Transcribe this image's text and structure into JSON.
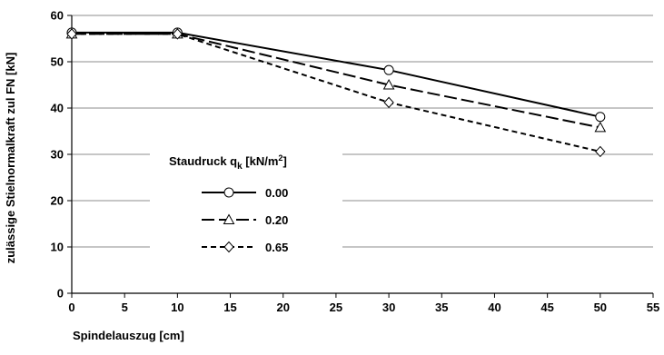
{
  "chart_data": {
    "type": "line",
    "title": "",
    "xlabel": "Spindelauszug [cm]",
    "ylabel": "zulässige Stielnormalkraft zul FN [kN]",
    "xlim": [
      0,
      55
    ],
    "ylim": [
      0,
      60
    ],
    "xticks": [
      0,
      5,
      10,
      15,
      20,
      25,
      30,
      35,
      40,
      45,
      50,
      55
    ],
    "yticks": [
      0,
      10,
      20,
      30,
      40,
      50,
      60
    ],
    "grid": "horizontal",
    "legend": {
      "title_prefix": "Staudruck q",
      "title_subscript": "k",
      "title_suffix": " [kN/m",
      "title_superscript": "2",
      "title_close": "]",
      "placement": "lower-left"
    },
    "series": [
      {
        "name": "0.00",
        "dash": "solid",
        "marker": "circle",
        "x": [
          0,
          10,
          30,
          50
        ],
        "y": [
          56.3,
          56.3,
          48.2,
          38.1
        ]
      },
      {
        "name": "0.20",
        "dash": "long-dash",
        "marker": "triangle",
        "x": [
          0,
          10,
          30,
          50
        ],
        "y": [
          56.0,
          56.0,
          45.0,
          35.8
        ]
      },
      {
        "name": "0.65",
        "dash": "short-dash",
        "marker": "diamond",
        "x": [
          0,
          10,
          30,
          50
        ],
        "y": [
          56.0,
          56.0,
          41.2,
          30.6
        ]
      }
    ]
  }
}
